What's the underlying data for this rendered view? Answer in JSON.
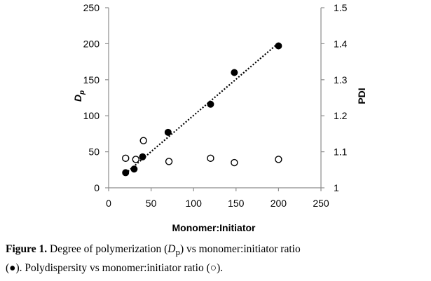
{
  "chart_data": {
    "type": "scatter",
    "x_axis": {
      "label": "Monomer:Initiator",
      "range": [
        0,
        250
      ],
      "ticks": [
        0,
        50,
        100,
        150,
        200,
        250
      ]
    },
    "y_left_axis": {
      "label": "D",
      "label_subscript": "p",
      "range": [
        0,
        250
      ],
      "ticks": [
        0,
        50,
        100,
        150,
        200,
        250
      ]
    },
    "y_right_axis": {
      "label": "PDI",
      "range": [
        1,
        1.5
      ],
      "ticks": [
        "1",
        "1.1",
        "1.2",
        "1.3",
        "1.4",
        "1.5"
      ]
    },
    "grid": false,
    "legend": "none",
    "series": [
      {
        "marker": "filled-circle",
        "axis": "left",
        "x": [
          20,
          30,
          40,
          70,
          120,
          148,
          200
        ],
        "y": [
          21,
          26,
          43,
          77,
          116,
          160,
          197
        ]
      },
      {
        "marker": "open-circle",
        "axis": "right",
        "x": [
          20,
          32,
          41,
          71,
          120,
          148,
          200
        ],
        "y": [
          1.082,
          1.079,
          1.131,
          1.073,
          1.082,
          1.07,
          1.079
        ]
      }
    ],
    "trendline": {
      "style": "dotted",
      "axis": "left",
      "x": [
        20,
        200
      ],
      "y": [
        20,
        201
      ]
    }
  },
  "caption": {
    "label": "Figure 1.",
    "line1": " Degree of polymerization (",
    "d": "D",
    "p": "p",
    "line1_end": ") vs monomer:initiator ratio",
    "line2": "(●). Polydispersity vs monomer:initiator ratio (○)."
  }
}
